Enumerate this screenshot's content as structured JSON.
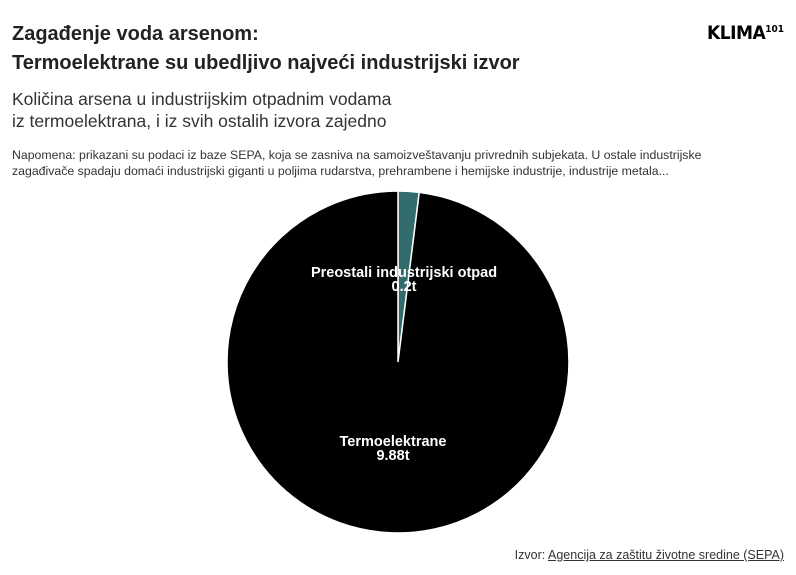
{
  "header": {
    "title_line1": "Zagađenje voda arsenom:",
    "title_line2": "Termoelektrane su ubedljivo najveći industrijski izvor",
    "subtitle_line1": "Količina arsena u industrijskim otpadnim vodama",
    "subtitle_line2": "iz termoelektrana, i iz svih ostalih izvora zajedno",
    "note_line1": "Napomena: prikazani su podaci iz baze SEPA, koja se zasniva na samoizveštavanju privrednih subjekata. U ostale industrijske",
    "note_line2": "zagađivače spadaju domaći industrijski giganti u poljima rudarstva, prehrambene i hemijske industrije, industrije metala..."
  },
  "logo": {
    "text": "KLIMA",
    "superscript": "101"
  },
  "footer": {
    "source_prefix": "Izvor: ",
    "source_link": "Agencija za zaštitu životne sredine (SEPA)"
  },
  "chart_data": {
    "type": "pie",
    "unit": "t",
    "slices": [
      {
        "label": "Preostali industrijski otpad",
        "value": 0.2,
        "value_label": "0.2t",
        "color": "#336c6c"
      },
      {
        "label": "Termoelektrane",
        "value": 9.88,
        "value_label": "9.88t",
        "color": "#000000"
      }
    ]
  }
}
